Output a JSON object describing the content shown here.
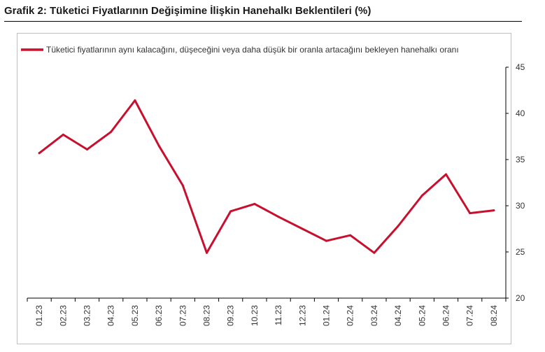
{
  "header": {
    "title": "Grafik 2: Tüketici Fiyatlarının Değişimine İlişkin Hanehalkı Beklentileri (%)"
  },
  "colors": {
    "series": "#c8102e",
    "axis": "#000000",
    "border": "#bfbfbf"
  },
  "chart_data": {
    "type": "line",
    "title": "Grafik 2: Tüketici Fiyatlarının Değişimine İlişkin Hanehalkı Beklentileri (%)",
    "categories": [
      "01.23",
      "02.23",
      "03.23",
      "04.23",
      "05.23",
      "06.23",
      "07.23",
      "08.23",
      "09.23",
      "10.23",
      "11.23",
      "12.23",
      "01.24",
      "02.24",
      "03.24",
      "04.24",
      "05.24",
      "06.24",
      "07.24",
      "08.24"
    ],
    "series": [
      {
        "name": "Tüketici fiyatlarının aynı kalacağını, düşeceğini veya daha düşük bir oranla artacağını bekleyen hanehalkı oranı",
        "values": [
          35.7,
          37.7,
          36.1,
          38.0,
          41.4,
          36.5,
          32.2,
          24.9,
          29.4,
          30.2,
          28.8,
          27.5,
          26.2,
          26.8,
          24.9,
          27.8,
          31.1,
          33.4,
          29.2,
          29.5
        ]
      }
    ],
    "y_axis_position": "right",
    "ylim": [
      20,
      45
    ],
    "yticks": [
      20,
      25,
      30,
      35,
      40,
      45
    ],
    "grid": false,
    "legend_position": "top"
  }
}
